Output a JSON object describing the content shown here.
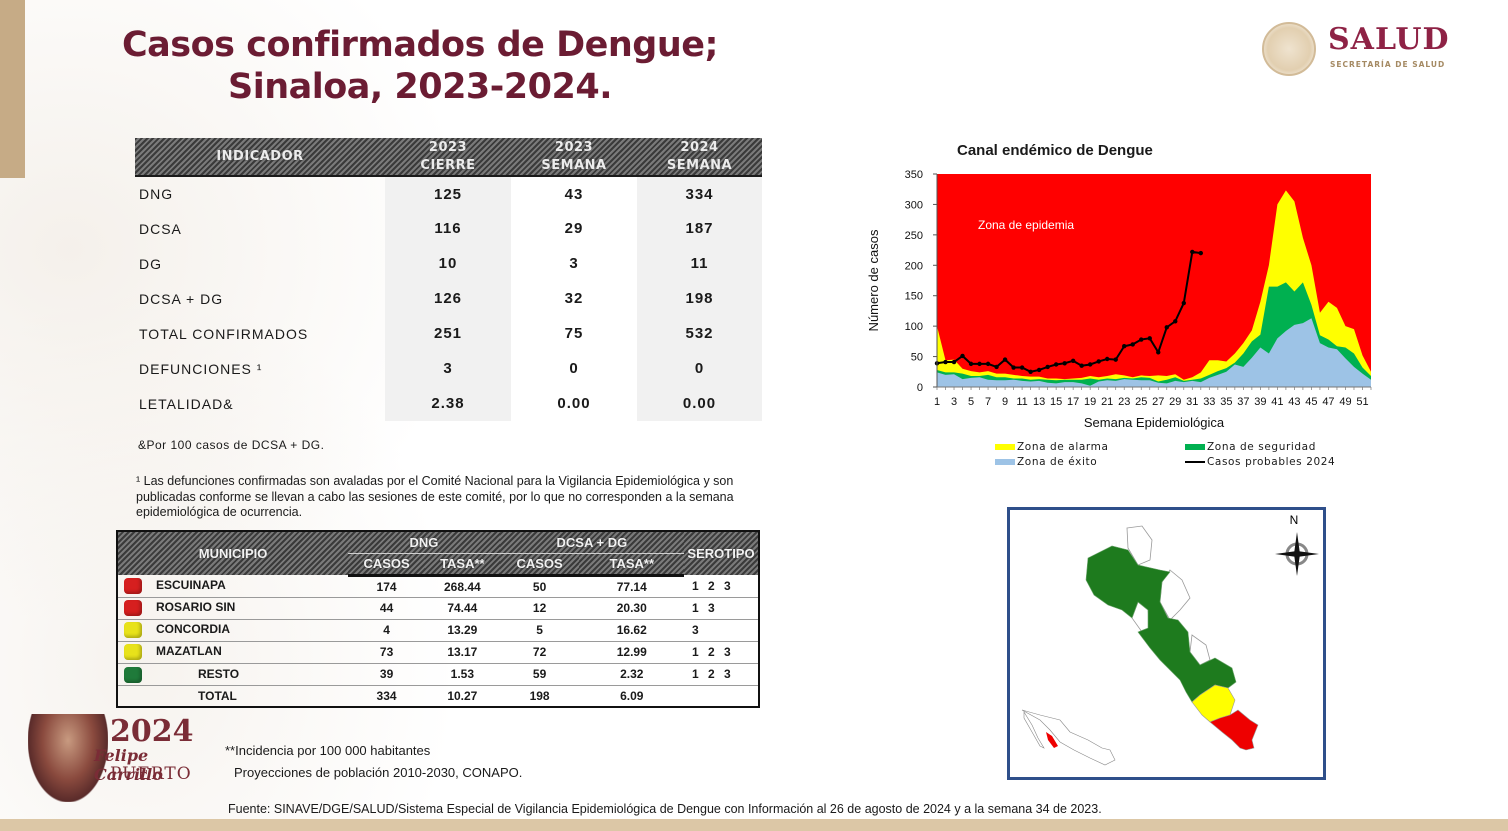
{
  "title": {
    "line1": "Casos confirmados de Dengue;",
    "line2": "Sinaloa, 2023-2024."
  },
  "logo": {
    "name": "SALUD",
    "subtitle": "SECRETARÍA DE SALUD",
    "seal_icon": "mexico-seal-icon"
  },
  "indicator_table": {
    "headers": [
      "INDICADOR",
      "2023 CIERRE",
      "2023 SEMANA",
      "2024 SEMANA"
    ],
    "header_lines": {
      "c1": "INDICADOR",
      "c2a": "2023",
      "c2b": "CIERRE",
      "c3a": "2023",
      "c3b": "SEMANA",
      "c4a": "2024",
      "c4b": "SEMANA"
    },
    "rows": [
      {
        "label": "DNG",
        "c2023_cierre": "125",
        "c2023_semana": "43",
        "c2024_semana": "334"
      },
      {
        "label": "DCSA",
        "c2023_cierre": "116",
        "c2023_semana": "29",
        "c2024_semana": "187"
      },
      {
        "label": "DG",
        "c2023_cierre": "10",
        "c2023_semana": "3",
        "c2024_semana": "11"
      },
      {
        "label": "DCSA + DG",
        "c2023_cierre": "126",
        "c2023_semana": "32",
        "c2024_semana": "198"
      },
      {
        "label": "TOTAL CONFIRMADOS",
        "c2023_cierre": "251",
        "c2023_semana": "75",
        "c2024_semana": "532"
      },
      {
        "label": "DEFUNCIONES ¹",
        "c2023_cierre": "3",
        "c2023_semana": "0",
        "c2024_semana": "0"
      },
      {
        "label": "LETALIDAD&",
        "c2023_cierre": "2.38",
        "c2023_semana": "0.00",
        "c2024_semana": "0.00"
      }
    ]
  },
  "notes": {
    "letalidad": "&Por 100 casos de DCSA + DG.",
    "defunciones": "¹ Las defunciones confirmadas son avaladas por el Comité Nacional para la Vigilancia Epidemiológica y son publicadas conforme se llevan a cabo las sesiones de este comité, por lo que no corresponden a la semana epidemiológica de ocurrencia.",
    "incidencia": "**Incidencia por 100 000 habitantes",
    "proyecciones": "Proyecciones de población 2010-2030,  CONAPO.",
    "fuente": "Fuente: SINAVE/DGE/SALUD/Sistema Especial de Vigilancia Epidemiológica de Dengue con Información al 26 de agosto de 2024 y a la semana 34 de 2023."
  },
  "municipio_table": {
    "headers": {
      "municipio": "MUNICIPIO",
      "dng": "DNG",
      "dcsa_dg": "DCSA + DG",
      "serotipo": "SEROTIPO",
      "casos": "CASOS",
      "tasa": "TASA**"
    },
    "rows": [
      {
        "color": "#d61f1f",
        "name": "ESCUINAPA",
        "dng_casos": "174",
        "dng_tasa": "268.44",
        "dcsa_casos": "50",
        "dcsa_tasa": "77.14",
        "serotipo": "1 2 3"
      },
      {
        "color": "#d61f1f",
        "name": "ROSARIO SIN",
        "dng_casos": "44",
        "dng_tasa": "74.44",
        "dcsa_casos": "12",
        "dcsa_tasa": "20.30",
        "serotipo": "1 3"
      },
      {
        "color": "#e8e21a",
        "name": "CONCORDIA",
        "dng_casos": "4",
        "dng_tasa": "13.29",
        "dcsa_casos": "5",
        "dcsa_tasa": "16.62",
        "serotipo": "3"
      },
      {
        "color": "#e8e21a",
        "name": "MAZATLAN",
        "dng_casos": "73",
        "dng_tasa": "13.17",
        "dcsa_casos": "72",
        "dcsa_tasa": "12.99",
        "serotipo": "1 2 3"
      },
      {
        "color": "#1f7a3a",
        "name": "RESTO",
        "dng_casos": "39",
        "dng_tasa": "1.53",
        "dcsa_casos": "59",
        "dcsa_tasa": "2.32",
        "serotipo": "1 2 3"
      },
      {
        "color": "",
        "name": "TOTAL",
        "dng_casos": "334",
        "dng_tasa": "10.27",
        "dcsa_casos": "198",
        "dcsa_tasa": "6.09",
        "serotipo": ""
      }
    ]
  },
  "logo2024": {
    "year": "2024",
    "line1": "Felipe Carrillo",
    "line2": "PUERTO"
  },
  "map": {
    "north_label": "N",
    "colors": {
      "green": "#1e7b1e",
      "yellow": "#ffff00",
      "red": "#ee0000",
      "border": "#2f4f8a"
    }
  },
  "chart_data": {
    "type": "area",
    "title": "Canal endémico de Dengue",
    "xlabel": "Semana Epidemiológica",
    "ylabel": "Número de casos",
    "ylim": [
      0,
      350
    ],
    "yticks": [
      0,
      50,
      100,
      150,
      200,
      250,
      300,
      350
    ],
    "xticks": [
      1,
      3,
      5,
      7,
      9,
      11,
      13,
      15,
      17,
      19,
      21,
      23,
      25,
      27,
      29,
      31,
      33,
      35,
      37,
      39,
      41,
      43,
      45,
      47,
      49,
      51
    ],
    "x": [
      1,
      2,
      3,
      4,
      5,
      6,
      7,
      8,
      9,
      10,
      11,
      12,
      13,
      14,
      15,
      16,
      17,
      18,
      19,
      20,
      21,
      22,
      23,
      24,
      25,
      26,
      27,
      28,
      29,
      30,
      31,
      32,
      33,
      34,
      35,
      36,
      37,
      38,
      39,
      40,
      41,
      42,
      43,
      44,
      45,
      46,
      47,
      48,
      49,
      50,
      51,
      52
    ],
    "annotation": "Zona de epidemia",
    "background_zone": {
      "name": "Zona de epidemia",
      "color": "#ff0000"
    },
    "series": [
      {
        "name": "Zona de éxito",
        "color": "#9dc3e6",
        "kind": "area",
        "values": [
          24,
          20,
          21,
          13,
          15,
          16,
          12,
          11,
          11,
          12,
          10,
          9,
          10,
          7,
          6,
          8,
          8,
          6,
          2,
          9,
          11,
          10,
          13,
          12,
          11,
          11,
          7,
          6,
          10,
          8,
          10,
          8,
          15,
          20,
          25,
          37,
          33,
          48,
          65,
          55,
          80,
          92,
          102,
          105,
          113,
          72,
          65,
          62,
          47,
          33,
          22,
          12
        ]
      },
      {
        "name": "Zona de seguridad",
        "color": "#00b050",
        "kind": "area",
        "values": [
          28,
          24,
          24,
          22,
          18,
          18,
          20,
          16,
          16,
          14,
          14,
          12,
          13,
          12,
          11,
          12,
          12,
          12,
          14,
          12,
          14,
          13,
          15,
          14,
          16,
          15,
          9,
          12,
          16,
          10,
          12,
          14,
          20,
          26,
          31,
          40,
          55,
          75,
          86,
          165,
          165,
          172,
          157,
          172,
          135,
          85,
          78,
          67,
          65,
          55,
          32,
          18
        ]
      },
      {
        "name": "Zona de alarma",
        "color": "#ffff00",
        "kind": "area",
        "values": [
          100,
          44,
          45,
          30,
          26,
          24,
          26,
          22,
          22,
          20,
          18,
          17,
          17,
          14,
          14,
          13,
          14,
          15,
          18,
          16,
          18,
          21,
          19,
          16,
          19,
          18,
          19,
          18,
          21,
          12,
          16,
          24,
          44,
          44,
          42,
          55,
          72,
          93,
          140,
          200,
          300,
          323,
          305,
          245,
          200,
          122,
          140,
          130,
          100,
          95,
          52,
          25
        ]
      },
      {
        "name": "Casos probables 2024",
        "color": "#000000",
        "kind": "line",
        "values": [
          39,
          41,
          41,
          51,
          38,
          38,
          38,
          33,
          45,
          32,
          32,
          25,
          28,
          33,
          37,
          39,
          43,
          35,
          37,
          42,
          46,
          45,
          67,
          70,
          78,
          80,
          57,
          98,
          108,
          138,
          222,
          220
        ]
      }
    ],
    "legend": [
      "Zona de alarma",
      "Zona de seguridad",
      "Zona de éxito",
      "Casos probables 2024"
    ],
    "legend_position": "bottom"
  }
}
